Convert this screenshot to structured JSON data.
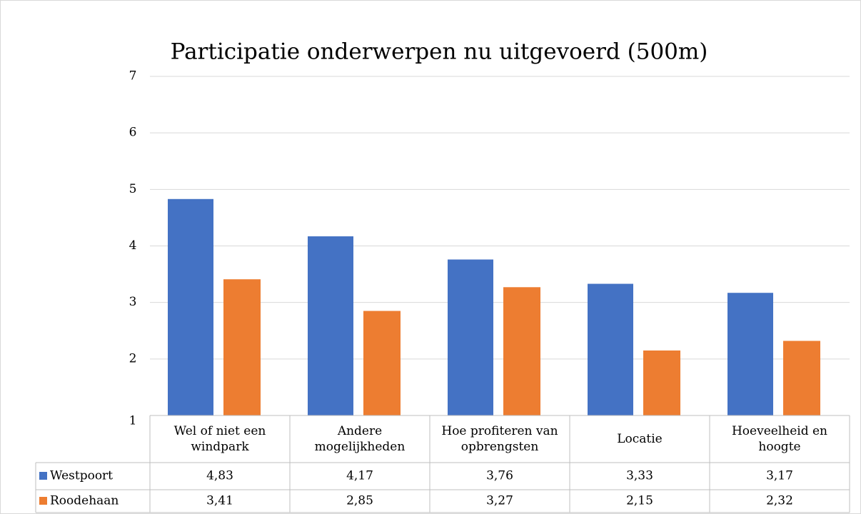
{
  "chart_data": {
    "type": "bar",
    "title": "Participatie onderwerpen nu uitgevoerd (500m)",
    "categories": [
      "Wel of niet een windpark",
      "Andere mogelijkheden",
      "Hoe profiteren van opbrengsten",
      "Locatie",
      "Hoeveelheid en hoogte"
    ],
    "series": [
      {
        "name": "Westpoort",
        "color": "#4472c4",
        "values": [
          4.83,
          4.17,
          3.76,
          3.33,
          3.17
        ],
        "value_labels": [
          "4,83",
          "4,17",
          "3,76",
          "3,33",
          "3,17"
        ]
      },
      {
        "name": "Roodehaan",
        "color": "#ed7d31",
        "values": [
          3.41,
          2.85,
          3.27,
          2.15,
          2.32
        ],
        "value_labels": [
          "3,41",
          "2,85",
          "3,27",
          "2,15",
          "2,32"
        ]
      }
    ],
    "ylim": [
      1,
      7
    ],
    "yticks": [
      1,
      2,
      3,
      4,
      5,
      6,
      7
    ],
    "grid": true
  }
}
